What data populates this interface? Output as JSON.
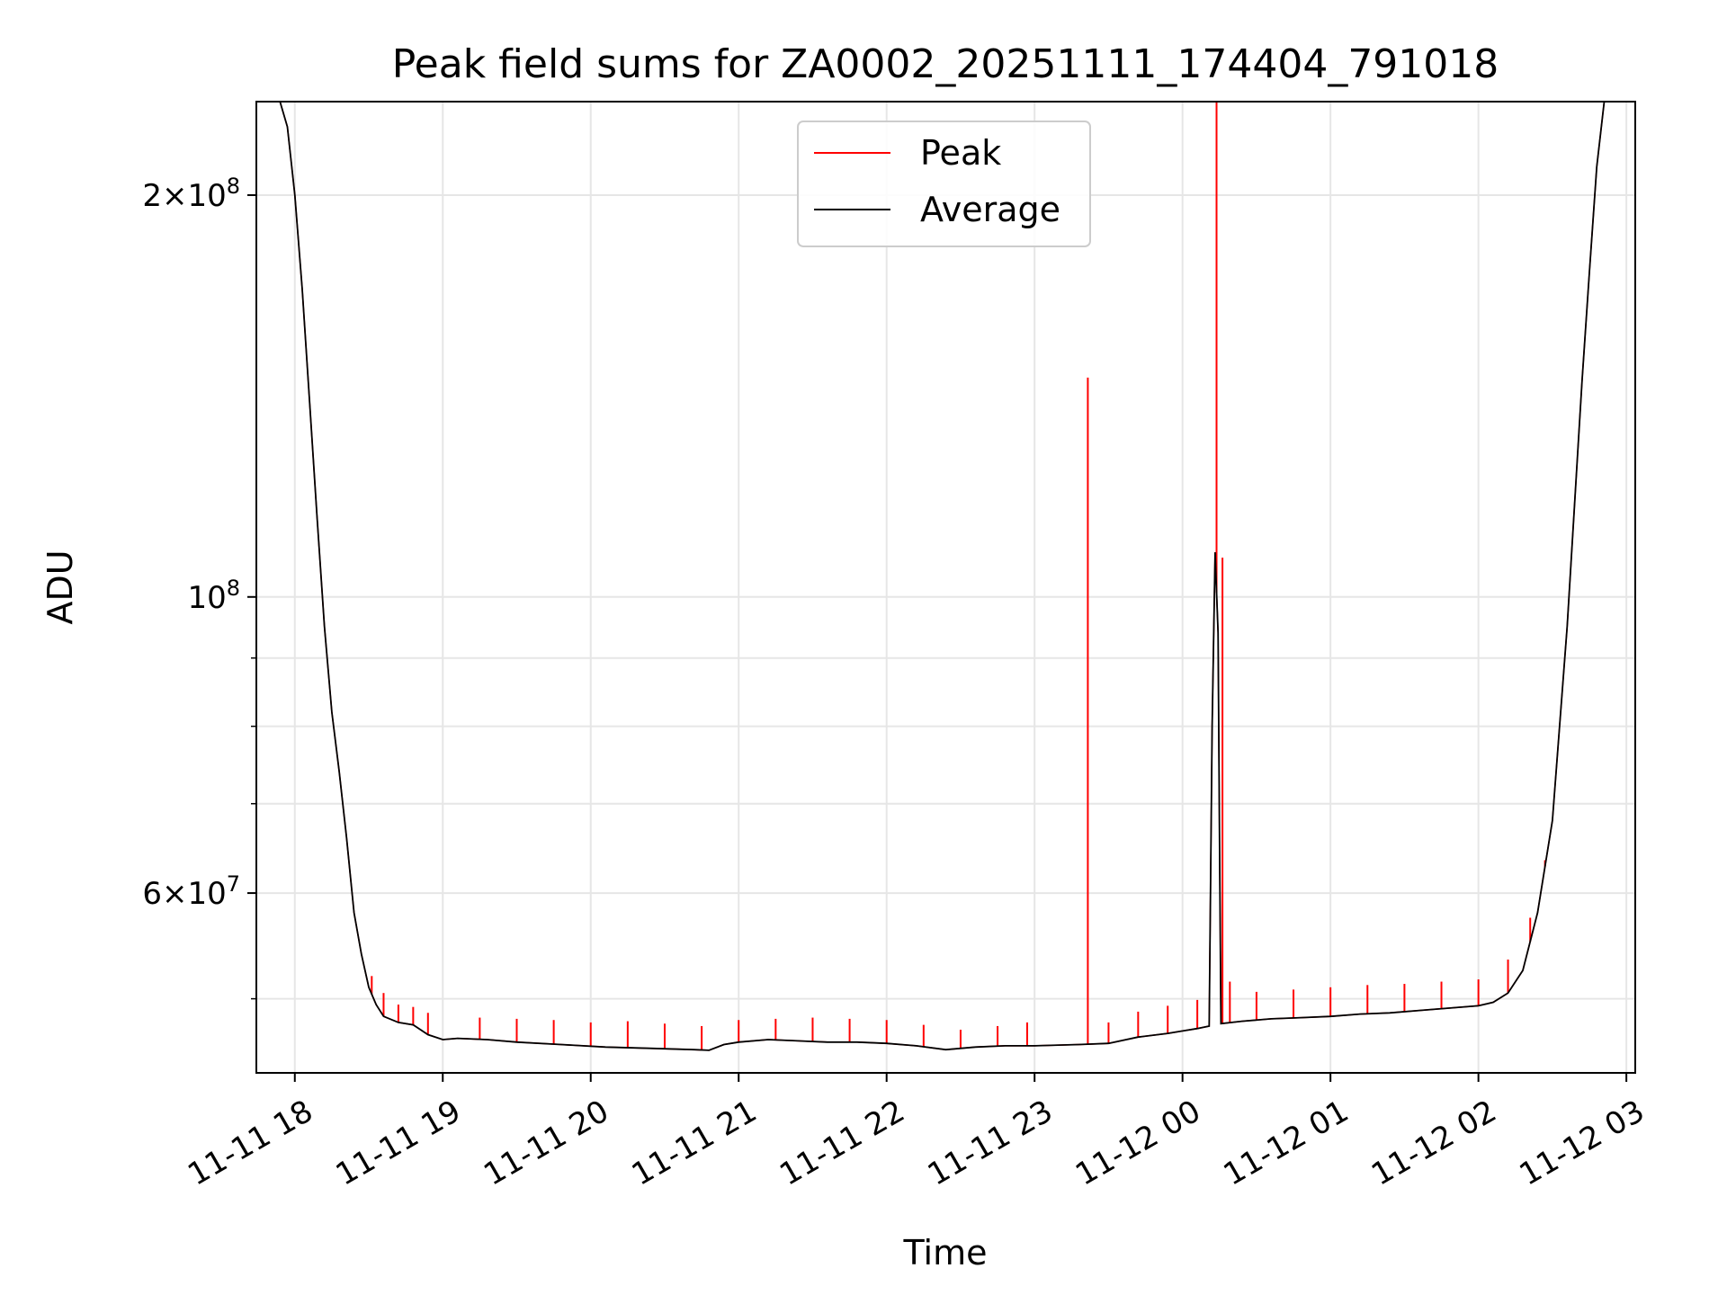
{
  "chart_data": {
    "type": "line",
    "title": "Peak field sums for ZA0002_20251111_174404_791018",
    "xlabel": "Time",
    "ylabel": "ADU",
    "yscale": "log",
    "ylim": [
      44000000,
      235000000
    ],
    "xlim_hours": [
      17.74,
      27.06
    ],
    "grid": true,
    "legend_position": "top-center",
    "x_ticks": [
      {
        "hour": 18,
        "label": "11-11 18"
      },
      {
        "hour": 19,
        "label": "11-11 19"
      },
      {
        "hour": 20,
        "label": "11-11 20"
      },
      {
        "hour": 21,
        "label": "11-11 21"
      },
      {
        "hour": 22,
        "label": "11-11 22"
      },
      {
        "hour": 23,
        "label": "11-11 23"
      },
      {
        "hour": 24,
        "label": "11-12 00"
      },
      {
        "hour": 25,
        "label": "11-12 01"
      },
      {
        "hour": 26,
        "label": "11-12 02"
      },
      {
        "hour": 27,
        "label": "11-12 03"
      }
    ],
    "y_major_ticks": [
      {
        "value": 100000000,
        "base": "10",
        "exp": "8"
      },
      {
        "value": 200000000,
        "mantissa": "2",
        "base": "10",
        "exp": "8"
      },
      {
        "value": 60000000,
        "mantissa": "6",
        "base": "10",
        "exp": "7"
      }
    ],
    "y_minor_ticks": [
      50000000,
      70000000,
      80000000,
      90000000
    ],
    "series": [
      {
        "name": "Average",
        "color": "#000000",
        "points": [
          [
            17.74,
            235000000
          ],
          [
            17.9,
            235000000
          ],
          [
            17.95,
            225000000
          ],
          [
            18.0,
            200000000
          ],
          [
            18.05,
            170000000
          ],
          [
            18.1,
            140000000
          ],
          [
            18.15,
            115000000
          ],
          [
            18.2,
            95000000
          ],
          [
            18.25,
            82000000
          ],
          [
            18.3,
            74000000
          ],
          [
            18.35,
            66000000
          ],
          [
            18.4,
            58000000
          ],
          [
            18.45,
            54000000
          ],
          [
            18.5,
            51000000
          ],
          [
            18.55,
            49500000
          ],
          [
            18.6,
            48500000
          ],
          [
            18.7,
            48000000
          ],
          [
            18.8,
            47800000
          ],
          [
            18.9,
            47000000
          ],
          [
            19.0,
            46600000
          ],
          [
            19.1,
            46700000
          ],
          [
            19.3,
            46600000
          ],
          [
            19.5,
            46400000
          ],
          [
            19.8,
            46200000
          ],
          [
            20.1,
            46000000
          ],
          [
            20.4,
            45900000
          ],
          [
            20.7,
            45800000
          ],
          [
            20.8,
            45750000
          ],
          [
            20.9,
            46200000
          ],
          [
            21.0,
            46400000
          ],
          [
            21.2,
            46600000
          ],
          [
            21.4,
            46500000
          ],
          [
            21.6,
            46400000
          ],
          [
            21.8,
            46400000
          ],
          [
            22.0,
            46300000
          ],
          [
            22.2,
            46100000
          ],
          [
            22.4,
            45800000
          ],
          [
            22.6,
            46000000
          ],
          [
            22.8,
            46100000
          ],
          [
            23.0,
            46100000
          ],
          [
            23.3,
            46200000
          ],
          [
            23.5,
            46300000
          ],
          [
            23.7,
            46800000
          ],
          [
            23.9,
            47100000
          ],
          [
            24.0,
            47300000
          ],
          [
            24.1,
            47500000
          ],
          [
            24.18,
            47700000
          ],
          [
            24.2,
            80000000
          ],
          [
            24.22,
            108000000
          ],
          [
            24.24,
            94000000
          ],
          [
            24.25,
            66000000
          ],
          [
            24.26,
            47900000
          ],
          [
            24.4,
            48100000
          ],
          [
            24.6,
            48300000
          ],
          [
            24.8,
            48400000
          ],
          [
            25.0,
            48500000
          ],
          [
            25.2,
            48700000
          ],
          [
            25.4,
            48800000
          ],
          [
            25.6,
            49000000
          ],
          [
            25.8,
            49200000
          ],
          [
            26.0,
            49400000
          ],
          [
            26.1,
            49700000
          ],
          [
            26.2,
            50500000
          ],
          [
            26.3,
            52500000
          ],
          [
            26.4,
            58000000
          ],
          [
            26.5,
            68000000
          ],
          [
            26.6,
            95000000
          ],
          [
            26.7,
            145000000
          ],
          [
            26.75,
            175000000
          ],
          [
            26.8,
            210000000
          ],
          [
            26.85,
            235000000
          ],
          [
            27.06,
            235000000
          ]
        ]
      },
      {
        "name": "Peak",
        "color": "#ff0000",
        "points": [
          [
            17.74,
            235000000
          ],
          [
            17.9,
            235000000
          ],
          [
            17.95,
            225000000
          ],
          [
            18.0,
            200000000
          ],
          [
            18.05,
            170000000
          ],
          [
            18.1,
            140000000
          ],
          [
            18.15,
            115000000
          ],
          [
            18.2,
            95000000
          ],
          [
            18.25,
            82000000
          ],
          [
            18.3,
            74000000
          ],
          [
            18.35,
            66000000
          ],
          [
            18.4,
            58000000
          ],
          [
            18.45,
            54000000
          ],
          [
            18.5,
            51000000
          ],
          [
            18.55,
            49500000
          ],
          [
            18.6,
            48500000
          ],
          [
            18.7,
            48000000
          ],
          [
            18.8,
            47800000
          ],
          [
            18.9,
            47000000
          ],
          [
            19.0,
            46600000
          ],
          [
            19.1,
            46700000
          ],
          [
            19.3,
            46600000
          ],
          [
            19.5,
            46400000
          ],
          [
            19.8,
            46200000
          ],
          [
            20.1,
            46000000
          ],
          [
            20.4,
            45900000
          ],
          [
            20.7,
            45800000
          ],
          [
            20.8,
            45750000
          ],
          [
            20.9,
            46200000
          ],
          [
            21.0,
            46400000
          ],
          [
            21.2,
            46600000
          ],
          [
            21.4,
            46500000
          ],
          [
            21.6,
            46400000
          ],
          [
            21.8,
            46400000
          ],
          [
            22.0,
            46300000
          ],
          [
            22.2,
            46100000
          ],
          [
            22.4,
            45800000
          ],
          [
            22.6,
            46000000
          ],
          [
            22.8,
            46100000
          ],
          [
            23.0,
            46100000
          ],
          [
            23.3,
            46200000
          ],
          [
            23.5,
            46300000
          ],
          [
            23.7,
            46800000
          ],
          [
            23.9,
            47100000
          ],
          [
            24.0,
            47300000
          ],
          [
            24.1,
            47500000
          ],
          [
            24.18,
            47700000
          ],
          [
            24.2,
            80000000
          ],
          [
            24.22,
            108000000
          ],
          [
            24.24,
            94000000
          ],
          [
            24.25,
            66000000
          ],
          [
            24.26,
            47900000
          ],
          [
            24.4,
            48100000
          ],
          [
            24.6,
            48300000
          ],
          [
            24.8,
            48400000
          ],
          [
            25.0,
            48500000
          ],
          [
            25.2,
            48700000
          ],
          [
            25.4,
            48800000
          ],
          [
            25.6,
            49000000
          ],
          [
            25.8,
            49200000
          ],
          [
            26.0,
            49400000
          ],
          [
            26.1,
            49700000
          ],
          [
            26.2,
            50500000
          ],
          [
            26.3,
            52500000
          ],
          [
            26.4,
            58000000
          ],
          [
            26.5,
            68000000
          ],
          [
            26.6,
            95000000
          ],
          [
            26.7,
            145000000
          ],
          [
            26.75,
            175000000
          ],
          [
            26.8,
            210000000
          ],
          [
            26.85,
            235000000
          ],
          [
            27.06,
            235000000
          ]
        ],
        "spikes": [
          [
            18.52,
            52000000
          ],
          [
            18.6,
            50500000
          ],
          [
            18.7,
            49500000
          ],
          [
            18.8,
            49300000
          ],
          [
            18.9,
            48800000
          ],
          [
            19.25,
            48400000
          ],
          [
            19.5,
            48300000
          ],
          [
            19.75,
            48200000
          ],
          [
            20.0,
            48000000
          ],
          [
            20.25,
            48100000
          ],
          [
            20.5,
            47900000
          ],
          [
            20.75,
            47700000
          ],
          [
            21.0,
            48200000
          ],
          [
            21.25,
            48300000
          ],
          [
            21.5,
            48400000
          ],
          [
            21.75,
            48300000
          ],
          [
            22.0,
            48200000
          ],
          [
            22.25,
            47800000
          ],
          [
            22.5,
            47400000
          ],
          [
            22.75,
            47700000
          ],
          [
            22.95,
            48000000
          ],
          [
            23.36,
            146000000
          ],
          [
            23.5,
            48000000
          ],
          [
            23.7,
            48900000
          ],
          [
            23.9,
            49400000
          ],
          [
            24.1,
            49900000
          ],
          [
            24.23,
            235000000
          ],
          [
            24.27,
            107000000
          ],
          [
            24.32,
            51500000
          ],
          [
            24.5,
            50600000
          ],
          [
            24.75,
            50800000
          ],
          [
            25.0,
            51000000
          ],
          [
            25.25,
            51200000
          ],
          [
            25.5,
            51300000
          ],
          [
            25.75,
            51500000
          ],
          [
            26.0,
            51700000
          ],
          [
            26.2,
            53500000
          ],
          [
            26.35,
            57500000
          ],
          [
            26.45,
            63500000
          ]
        ]
      }
    ]
  }
}
